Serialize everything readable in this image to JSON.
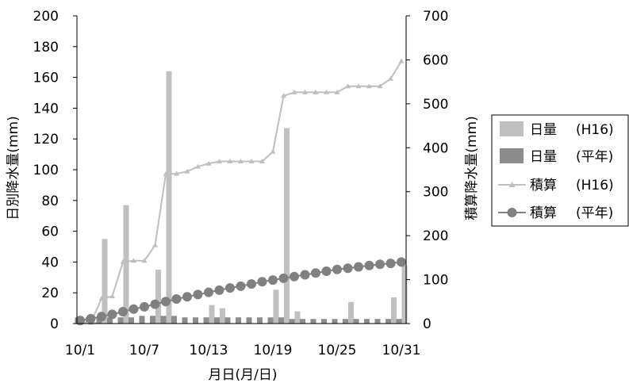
{
  "chart_data": {
    "type": "bar",
    "x_tick_labels": [
      "10/1",
      "10/7",
      "10/13",
      "10/19",
      "10/25",
      "10/31"
    ],
    "xlabel": "月日(月/日)",
    "ylabel_left": "日別降水量(mm)",
    "ylabel_right": "積算降水量(mm)",
    "ylim_left": [
      0,
      200
    ],
    "ylim_right": [
      0,
      700
    ],
    "yticks_left": [
      0,
      20,
      40,
      60,
      80,
      100,
      120,
      140,
      160,
      180,
      200
    ],
    "yticks_right": [
      0,
      100,
      200,
      300,
      400,
      500,
      600,
      700
    ],
    "grid": false,
    "legend_position": "right",
    "days": [
      1,
      2,
      3,
      4,
      5,
      6,
      7,
      8,
      9,
      10,
      11,
      12,
      13,
      14,
      15,
      16,
      17,
      18,
      19,
      20,
      21,
      22,
      23,
      24,
      25,
      26,
      27,
      28,
      29,
      30,
      31
    ],
    "series": [
      {
        "name": "日量 (H16)",
        "kind": "bar",
        "axis": "left",
        "color": "#c0c0c0",
        "values": [
          1,
          1,
          55,
          0,
          77,
          0,
          0,
          35,
          164,
          0,
          0,
          0,
          12,
          10,
          0,
          0,
          0,
          0,
          22,
          127,
          8,
          0,
          0,
          0,
          0,
          14,
          0,
          0,
          0,
          17,
          38
        ]
      },
      {
        "name": "日量 (平年)",
        "kind": "bar",
        "axis": "left",
        "color": "#8c8c8c",
        "values": [
          4,
          4,
          4,
          4,
          4,
          4,
          5,
          5,
          5,
          5,
          4,
          4,
          4,
          4,
          4,
          4,
          4,
          4,
          4,
          4,
          3,
          3,
          3,
          3,
          3,
          3,
          3,
          3,
          3,
          3,
          3
        ]
      },
      {
        "name": "積算 (H16)",
        "kind": "line",
        "marker": "triangle",
        "axis": "right",
        "color": "#bfbfbf",
        "values": [
          1,
          2,
          57,
          62,
          140,
          143,
          143,
          178,
          340,
          341,
          346,
          357,
          364,
          369,
          369,
          369,
          369,
          369,
          391,
          518,
          526,
          526,
          526,
          526,
          526,
          540,
          540,
          540,
          540,
          557,
          597
        ]
      },
      {
        "name": "積算 (平年)",
        "kind": "line",
        "marker": "circle",
        "axis": "right",
        "color": "#808080",
        "values": [
          7,
          11,
          16,
          21,
          27,
          33,
          38,
          44,
          50,
          56,
          61,
          66,
          71,
          76,
          81,
          85,
          90,
          95,
          99,
          103,
          107,
          111,
          115,
          119,
          123,
          126,
          129,
          132,
          135,
          137,
          140
        ]
      }
    ]
  },
  "legend": {
    "items": [
      {
        "label": "日量",
        "tag": "(H16)"
      },
      {
        "label": "日量",
        "tag": "(平年)"
      },
      {
        "label": "積算",
        "tag": "(H16)"
      },
      {
        "label": "積算",
        "tag": "(平年)"
      }
    ]
  }
}
